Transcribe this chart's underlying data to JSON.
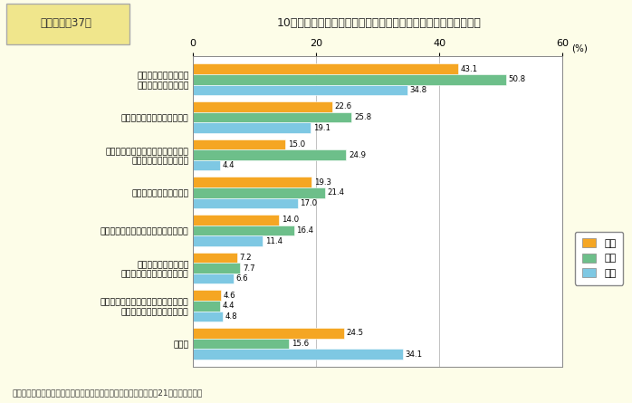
{
  "title_box": "第１－特－37図",
  "title_main": "10年後のキャリアアップが見通せない理由（性別）（複数回答）",
  "categories": [
    "昇進する見込みのない\n仕事に就いているから",
    "キャリアパスが不明確だから",
    "家事・育児・介護等やストレス等で\n辞めるかもしれないから",
    "現状で満足しているから",
    "明確なキャリアプランが描けないから",
    "身近にロールモデルや\n相談できる上司がいないから",
    "職場の同僚等の間でキャリアについて\n相談しやすい環境にないから",
    "その他"
  ],
  "sousu": [
    43.1,
    22.6,
    15.0,
    19.3,
    14.0,
    7.2,
    4.6,
    24.5
  ],
  "josei": [
    50.8,
    25.8,
    24.9,
    21.4,
    16.4,
    7.7,
    4.4,
    15.6
  ],
  "dansei": [
    34.8,
    19.1,
    4.4,
    17.0,
    11.4,
    6.6,
    4.8,
    34.1
  ],
  "colors": {
    "sousu": "#F5A623",
    "josei": "#6DBF8A",
    "dansei": "#7EC8E3"
  },
  "legend_labels": [
    "総数",
    "女性",
    "男性"
  ],
  "xlim": [
    0,
    60
  ],
  "xticks": [
    0,
    20,
    40,
    60
  ],
  "background_color": "#FDFDE8",
  "chart_bg": "#FFFFFF",
  "note": "（備考）内閣府「男女のライフスタイルに関する意識調査」（平成21年）より作成。"
}
